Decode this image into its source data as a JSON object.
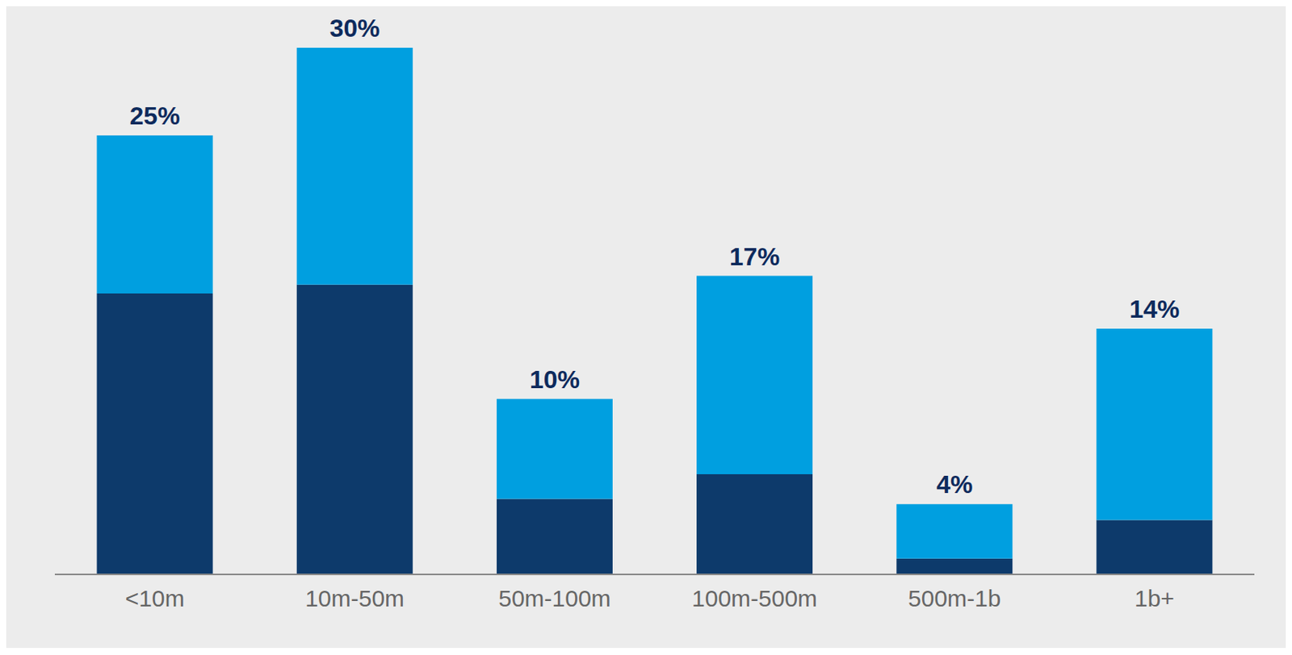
{
  "chart_data": {
    "type": "bar",
    "stacked": true,
    "categories": [
      "<10m",
      "10m-50m",
      "50m-100m",
      "100m-500m",
      "500m-1b",
      "1b+"
    ],
    "series": [
      {
        "color": "#0d3a6b",
        "values": [
          16,
          16.5,
          4.3,
          5.7,
          0.9,
          3.1
        ]
      },
      {
        "color": "#009fe0",
        "values": [
          9,
          13.5,
          5.7,
          11.3,
          3.1,
          10.9
        ]
      }
    ],
    "totals": [
      25,
      30,
      10,
      17,
      4,
      14
    ],
    "total_labels": [
      "25%",
      "30%",
      "10%",
      "17%",
      "4%",
      "14%"
    ],
    "ylim": [
      0,
      32
    ],
    "tick_labels": "x",
    "grid": false
  }
}
